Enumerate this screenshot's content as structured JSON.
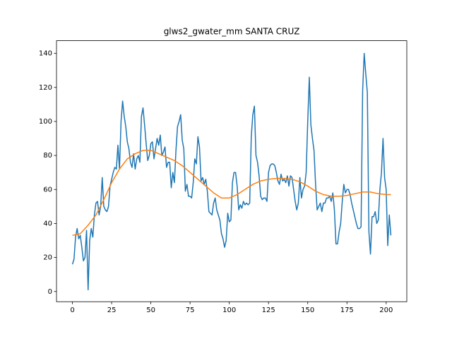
{
  "chart_data": {
    "type": "line",
    "title": "glws2_gwater_mm SANTA CRUZ",
    "xlim": [
      -10.15,
      213.15
    ],
    "ylim": [
      -6,
      147.5
    ],
    "xticks": [
      0,
      25,
      50,
      75,
      100,
      125,
      150,
      175,
      200
    ],
    "yticks": [
      0,
      20,
      40,
      60,
      80,
      100,
      120,
      140
    ],
    "grid": false,
    "series": [
      {
        "color": "#1f77b4",
        "x": [
          0,
          1,
          2,
          3,
          4,
          5,
          6,
          7,
          8,
          9,
          10,
          11,
          12,
          13,
          14,
          15,
          16,
          17,
          18,
          19,
          20,
          21,
          22,
          23,
          24,
          25,
          26,
          27,
          28,
          29,
          30,
          31,
          32,
          33,
          34,
          35,
          36,
          37,
          38,
          39,
          40,
          41,
          42,
          43,
          44,
          45,
          46,
          47,
          48,
          49,
          50,
          51,
          52,
          53,
          54,
          55,
          56,
          57,
          58,
          59,
          60,
          61,
          62,
          63,
          64,
          65,
          66,
          67,
          68,
          69,
          70,
          71,
          72,
          73,
          74,
          75,
          76,
          77,
          78,
          79,
          80,
          81,
          82,
          83,
          84,
          85,
          86,
          87,
          88,
          89,
          90,
          91,
          92,
          93,
          94,
          95,
          96,
          97,
          98,
          99,
          100,
          101,
          102,
          103,
          104,
          105,
          106,
          107,
          108,
          109,
          110,
          111,
          112,
          113,
          114,
          115,
          116,
          117,
          118,
          119,
          120,
          121,
          122,
          123,
          124,
          125,
          126,
          127,
          128,
          129,
          130,
          131,
          132,
          133,
          134,
          135,
          136,
          137,
          138,
          139,
          140,
          141,
          142,
          143,
          144,
          145,
          146,
          147,
          148,
          149,
          150,
          151,
          152,
          153,
          154,
          155,
          156,
          157,
          158,
          159,
          160,
          161,
          162,
          163,
          164,
          165,
          166,
          167,
          168,
          169,
          170,
          171,
          172,
          173,
          174,
          175,
          176,
          177,
          178,
          179,
          180,
          181,
          182,
          183,
          184,
          185,
          186,
          187,
          188,
          189,
          190,
          191,
          192,
          193,
          194,
          195,
          196,
          197,
          198,
          199,
          200,
          201,
          202,
          203
        ],
        "values": [
          16,
          19,
          32,
          37,
          31,
          33,
          26,
          18,
          20,
          36,
          1,
          30,
          37,
          32,
          45,
          52,
          53,
          45,
          50,
          67,
          50,
          48,
          47,
          50,
          62,
          66,
          70,
          73,
          72,
          86,
          72,
          100,
          112,
          103,
          97,
          88,
          84,
          76,
          73,
          81,
          72,
          78,
          80,
          76,
          103,
          108,
          98,
          87,
          77,
          80,
          87,
          88,
          78,
          84,
          90,
          86,
          92,
          80,
          82,
          85,
          73,
          76,
          76,
          61,
          70,
          64,
          83,
          97,
          100,
          104,
          89,
          84,
          59,
          63,
          56,
          56,
          55,
          64,
          78,
          75,
          91,
          85,
          65,
          67,
          63,
          66,
          59,
          47,
          46,
          45,
          52,
          55,
          48,
          45,
          42,
          34,
          31,
          26,
          30,
          46,
          41,
          42,
          64,
          70,
          70,
          62,
          48,
          51,
          49,
          53,
          51,
          52,
          51,
          52,
          91,
          104,
          109,
          80,
          76,
          68,
          56,
          54,
          55,
          55,
          53,
          70,
          74,
          75,
          75,
          74,
          70,
          65,
          63,
          69,
          65,
          66,
          64,
          68,
          62,
          68,
          67,
          60,
          53,
          48,
          52,
          67,
          55,
          60,
          62,
          70,
          100,
          126,
          98,
          90,
          83,
          63,
          48,
          50,
          52,
          47,
          52,
          52,
          55,
          55,
          56,
          53,
          58,
          48,
          28,
          28,
          35,
          40,
          53,
          63,
          58,
          60,
          60,
          57,
          52,
          48,
          44,
          40,
          37,
          37,
          38,
          118,
          140,
          128,
          117,
          35,
          22,
          44,
          44,
          47,
          40,
          42,
          60,
          70,
          90,
          67,
          60,
          27,
          45,
          33
        ]
      },
      {
        "color": "#ff7f0e",
        "x": [
          0,
          5,
          10,
          15,
          20,
          25,
          30,
          35,
          40,
          45,
          50,
          55,
          60,
          65,
          70,
          75,
          80,
          85,
          90,
          95,
          100,
          105,
          110,
          115,
          120,
          125,
          130,
          135,
          140,
          145,
          150,
          155,
          160,
          165,
          170,
          175,
          180,
          185,
          190,
          195,
          200,
          203
        ],
        "values": [
          33,
          34,
          39,
          45,
          54,
          64,
          72,
          78,
          81,
          83,
          83,
          81,
          79,
          77,
          74,
          70,
          66,
          62,
          58,
          55,
          55,
          57,
          60,
          63,
          65,
          66,
          66.5,
          66.5,
          66,
          64.5,
          62,
          59,
          57,
          56,
          56,
          56.5,
          57.5,
          58.5,
          58.5,
          57.5,
          57,
          57
        ]
      }
    ]
  }
}
